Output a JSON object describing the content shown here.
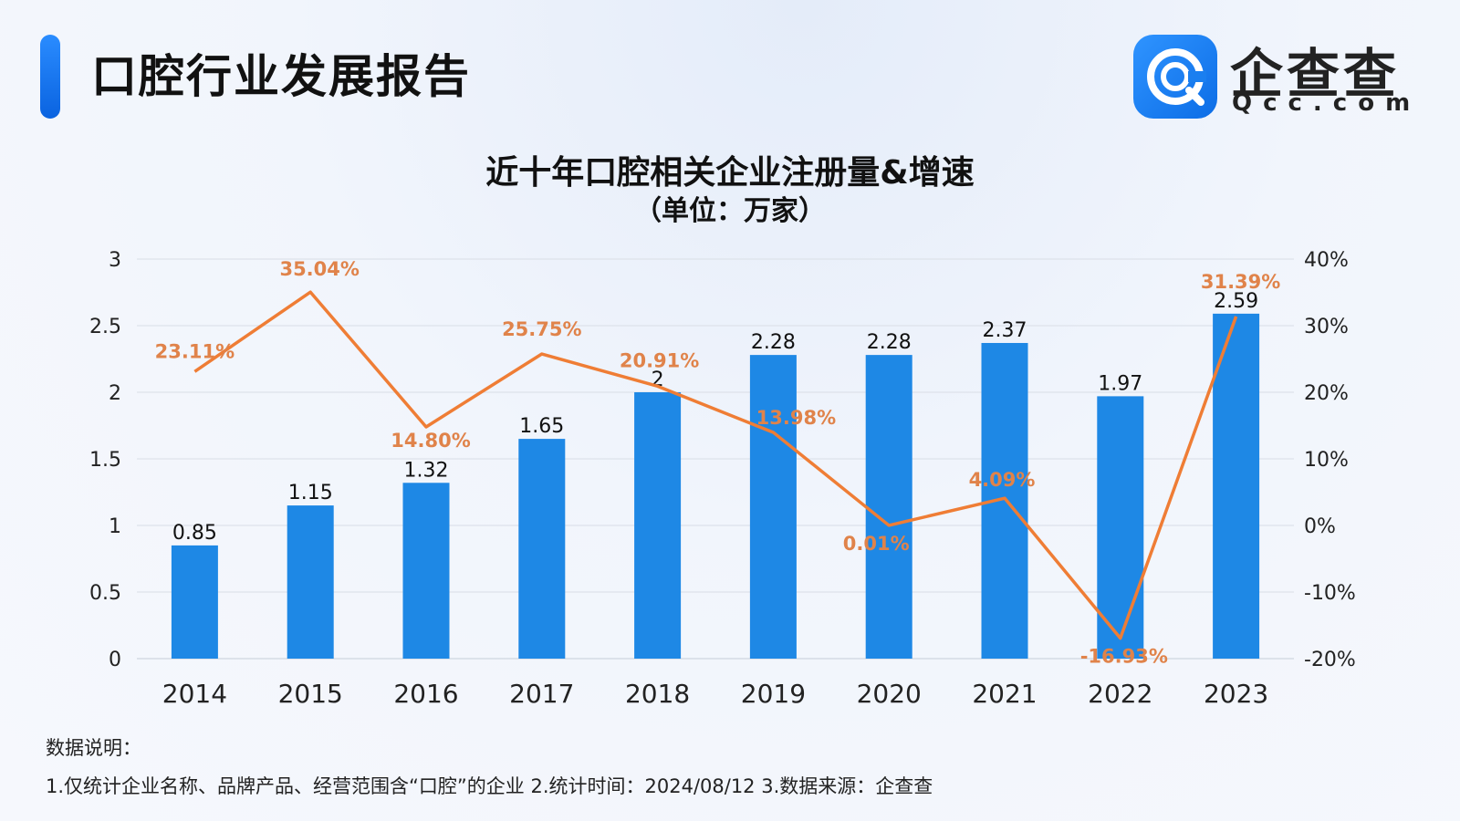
{
  "header": {
    "report_title": "口腔行业发展报告",
    "brand_name": "企查查",
    "brand_domain": "Qcc.com"
  },
  "colors": {
    "accent": "#1a7ff0",
    "bar": "#1e88e5",
    "line": "#ef7d35",
    "rate_label": "#e0834a"
  },
  "chart_data": {
    "type": "bar",
    "title": "近十年口腔相关企业注册量&增速",
    "subtitle": "（单位：万家）",
    "categories": [
      "2014",
      "2015",
      "2016",
      "2017",
      "2018",
      "2019",
      "2020",
      "2021",
      "2022",
      "2023"
    ],
    "series": [
      {
        "type": "bar",
        "values": [
          0.85,
          1.15,
          1.32,
          1.65,
          2,
          2.28,
          2.28,
          2.37,
          1.97,
          2.59
        ],
        "labels": [
          "0.85",
          "1.15",
          "1.32",
          "1.65",
          "2",
          "2.28",
          "2.28",
          "2.37",
          "1.97",
          "2.59"
        ]
      },
      {
        "type": "line",
        "axis": "right",
        "values": [
          23.11,
          35.04,
          14.8,
          25.75,
          20.91,
          13.98,
          0.01,
          4.09,
          -16.93,
          31.39
        ],
        "labels": [
          "23.11%",
          "35.04%",
          "14.80%",
          "25.75%",
          "20.91%",
          "13.98%",
          "0.01%",
          "4.09%",
          "-16.93%",
          "31.39%"
        ]
      }
    ],
    "y_left": {
      "min": 0,
      "max": 3,
      "ticks": [
        "0",
        "0.5",
        "1",
        "1.5",
        "2",
        "2.5",
        "3"
      ]
    },
    "y_right": {
      "min": -20,
      "max": 40,
      "ticks": [
        "-20%",
        "-10%",
        "0%",
        "10%",
        "20%",
        "30%",
        "40%"
      ]
    },
    "grid": true
  },
  "notes": {
    "label": "数据说明：",
    "text": "1.仅统计企业名称、品牌产品、经营范围含“口腔”的企业   2.统计时间：2024/08/12    3.数据来源：企查查"
  }
}
